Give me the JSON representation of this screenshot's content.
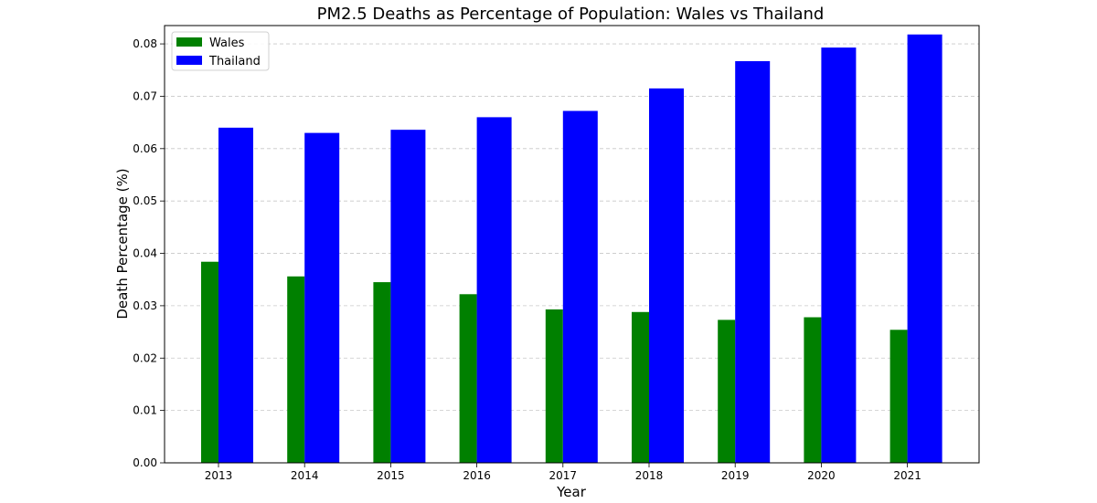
{
  "chart_data": {
    "type": "bar",
    "title": "PM2.5 Deaths as Percentage of Population: Wales vs Thailand",
    "xlabel": "Year",
    "ylabel": "Death Percentage (%)",
    "categories": [
      "2013",
      "2014",
      "2015",
      "2016",
      "2017",
      "2018",
      "2019",
      "2020",
      "2021"
    ],
    "series": [
      {
        "name": "Wales",
        "color": "#008000",
        "values": [
          0.0384,
          0.0356,
          0.0345,
          0.0322,
          0.0293,
          0.0288,
          0.0273,
          0.0278,
          0.0254
        ]
      },
      {
        "name": "Thailand",
        "color": "#0000ff",
        "values": [
          0.064,
          0.063,
          0.0636,
          0.066,
          0.0672,
          0.0715,
          0.0767,
          0.0793,
          0.0818
        ]
      }
    ],
    "ylim": [
      0,
      0.0835
    ],
    "yticks": [
      "0.00",
      "0.01",
      "0.02",
      "0.03",
      "0.04",
      "0.05",
      "0.06",
      "0.07",
      "0.08"
    ],
    "grid": "horizontal dashed",
    "legend_position": "top-left"
  }
}
